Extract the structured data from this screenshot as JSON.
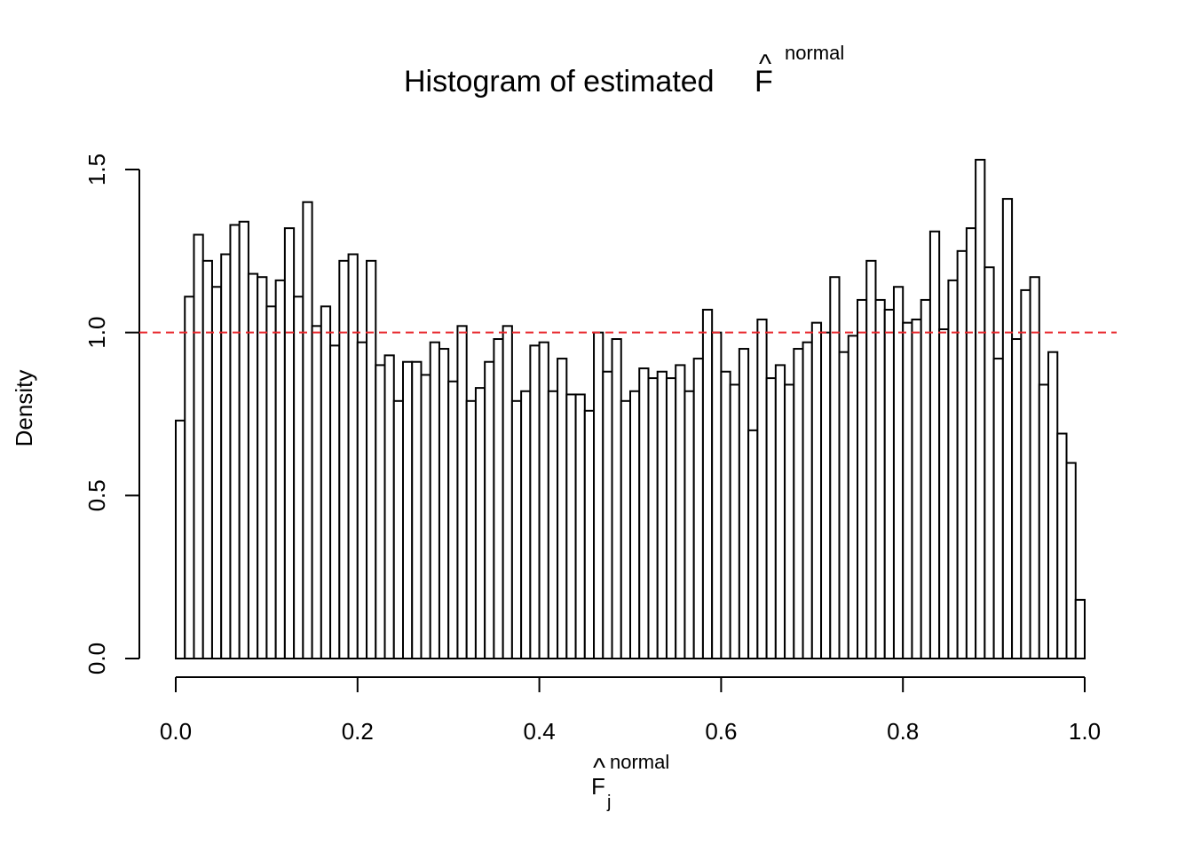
{
  "chart_data": {
    "type": "bar",
    "title_text": "Histogram of estimated",
    "title_symbol": "F",
    "title_hat": "^",
    "title_superscript": "normal",
    "xlabel_symbol": "F",
    "xlabel_hat": "^",
    "xlabel_superscript": "normal",
    "xlabel_subscript": "j",
    "ylabel": "Density",
    "xlim": [
      0,
      1
    ],
    "ylim": [
      0,
      1.5
    ],
    "x_ticks": [
      "0.0",
      "0.2",
      "0.4",
      "0.6",
      "0.8",
      "1.0"
    ],
    "y_ticks": [
      "0.0",
      "0.5",
      "1.0",
      "1.5"
    ],
    "bin_width": 0.01,
    "bin_start": 0,
    "values": [
      0.73,
      1.11,
      1.3,
      1.22,
      1.14,
      1.24,
      1.33,
      1.34,
      1.18,
      1.17,
      1.08,
      1.16,
      1.32,
      1.11,
      1.4,
      1.02,
      1.08,
      0.96,
      1.22,
      1.24,
      0.97,
      1.22,
      0.9,
      0.93,
      0.79,
      0.91,
      0.91,
      0.87,
      0.97,
      0.95,
      0.85,
      1.02,
      0.79,
      0.83,
      0.91,
      0.98,
      1.02,
      0.79,
      0.82,
      0.96,
      0.97,
      0.82,
      0.92,
      0.81,
      0.81,
      0.76,
      1.0,
      0.88,
      0.98,
      0.79,
      0.82,
      0.89,
      0.86,
      0.88,
      0.86,
      0.9,
      0.82,
      0.92,
      1.07,
      1.0,
      0.88,
      0.84,
      0.95,
      0.7,
      1.04,
      0.86,
      0.9,
      0.84,
      0.95,
      0.97,
      1.03,
      1.0,
      1.17,
      0.94,
      0.99,
      1.1,
      1.22,
      1.1,
      1.07,
      1.14,
      1.03,
      1.04,
      1.1,
      1.31,
      1.01,
      1.16,
      1.25,
      1.32,
      1.53,
      1.2,
      0.92,
      1.41,
      0.98,
      1.13,
      1.17,
      0.84,
      0.94,
      0.69,
      0.6,
      0.18
    ],
    "reference_line": {
      "y": 1.0,
      "style": "dashed",
      "color": "#e8262b"
    },
    "bar_fill": "#ffffff",
    "bar_stroke": "#000000",
    "grid": false,
    "legend": "none"
  }
}
